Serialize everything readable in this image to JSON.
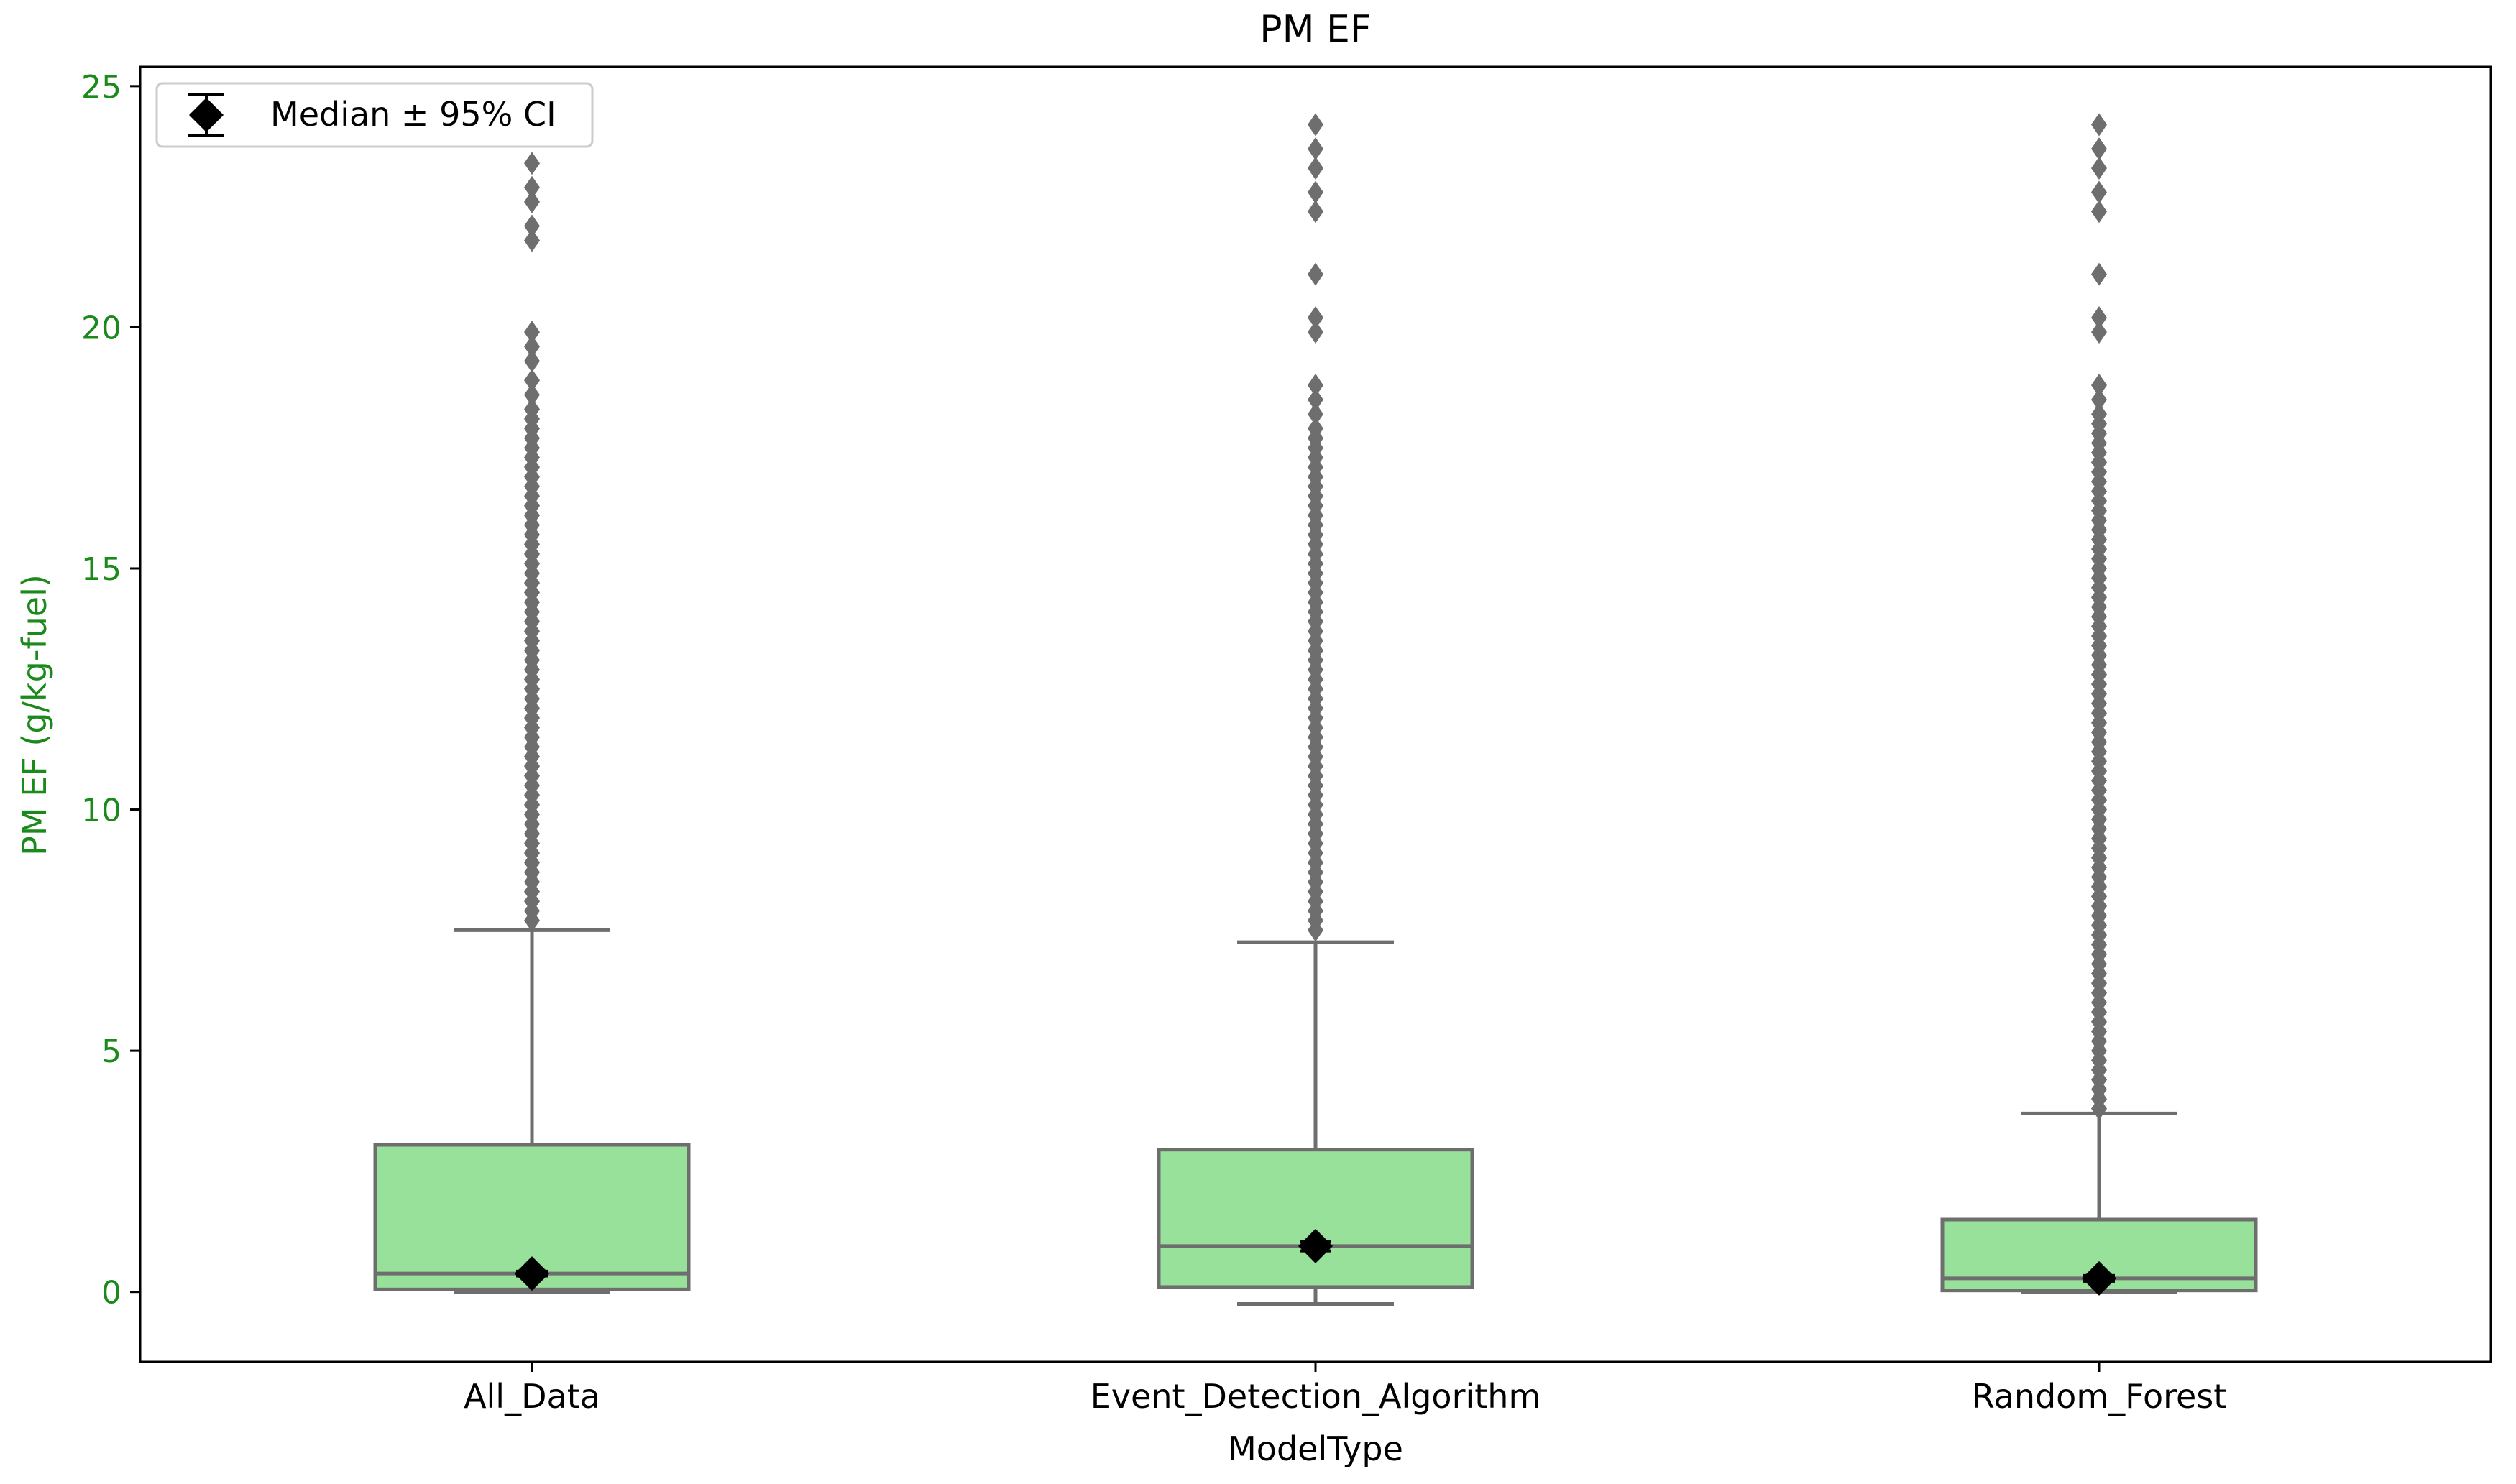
{
  "chart_data": {
    "type": "box",
    "title": "PM EF",
    "xlabel": "ModelType",
    "ylabel": "PM EF (g/kg-fuel)",
    "ylim": [
      -1.45,
      25.4
    ],
    "yticks": [
      0,
      5,
      10,
      15,
      20,
      25
    ],
    "grid": false,
    "legend": {
      "placement": "top-left",
      "label": "Median ± 95% CI"
    },
    "colors": {
      "box_fill": "#98e19b",
      "box_edge": "#6e6e6e",
      "outlier": "#6e6e6e",
      "median_marker": "#000000",
      "y_axis_text": "#1a8a1a",
      "axis": "#000000"
    },
    "categories": [
      "All_Data",
      "Event_Detection_Algorithm",
      "Random_Forest"
    ],
    "boxes": [
      {
        "category": "All_Data",
        "whisker_low": 0.0,
        "q1": 0.05,
        "median": 0.38,
        "q3": 3.05,
        "whisker_high": 7.5,
        "median_ci": [
          0.33,
          0.43
        ],
        "outliers": [
          7.7,
          7.9,
          8.1,
          8.3,
          8.5,
          8.7,
          8.9,
          9.1,
          9.3,
          9.5,
          9.7,
          9.9,
          10.1,
          10.3,
          10.5,
          10.7,
          10.9,
          11.1,
          11.3,
          11.5,
          11.7,
          11.9,
          12.1,
          12.3,
          12.5,
          12.7,
          12.9,
          13.1,
          13.3,
          13.5,
          13.7,
          13.9,
          14.1,
          14.3,
          14.5,
          14.7,
          14.9,
          15.1,
          15.3,
          15.5,
          15.7,
          15.9,
          16.1,
          16.3,
          16.5,
          16.7,
          16.9,
          17.1,
          17.3,
          17.5,
          17.7,
          17.9,
          18.1,
          18.3,
          18.6,
          18.9,
          19.3,
          19.6,
          19.9,
          21.8,
          22.1,
          22.6,
          22.9,
          23.4
        ]
      },
      {
        "category": "Event_Detection_Algorithm",
        "whisker_low": -0.25,
        "q1": 0.1,
        "median": 0.95,
        "q3": 2.95,
        "whisker_high": 7.25,
        "median_ci": [
          0.85,
          1.05
        ],
        "outliers": [
          7.5,
          7.7,
          7.9,
          8.1,
          8.3,
          8.5,
          8.7,
          8.9,
          9.1,
          9.3,
          9.5,
          9.7,
          9.9,
          10.1,
          10.3,
          10.5,
          10.7,
          10.9,
          11.1,
          11.3,
          11.5,
          11.7,
          11.9,
          12.1,
          12.3,
          12.5,
          12.7,
          12.9,
          13.1,
          13.3,
          13.5,
          13.7,
          13.9,
          14.1,
          14.3,
          14.5,
          14.7,
          14.9,
          15.1,
          15.3,
          15.5,
          15.7,
          15.9,
          16.1,
          16.3,
          16.5,
          16.7,
          16.9,
          17.1,
          17.3,
          17.5,
          17.7,
          17.9,
          18.2,
          18.5,
          18.8,
          19.9,
          20.2,
          21.1,
          22.4,
          22.8,
          23.3,
          23.7,
          24.2
        ]
      },
      {
        "category": "Random_Forest",
        "whisker_low": 0.0,
        "q1": 0.03,
        "median": 0.28,
        "q3": 1.5,
        "whisker_high": 3.7,
        "median_ci": [
          0.22,
          0.34
        ],
        "outliers": [
          3.8,
          4.0,
          4.2,
          4.4,
          4.6,
          4.8,
          5.0,
          5.2,
          5.4,
          5.6,
          5.8,
          6.0,
          6.2,
          6.4,
          6.6,
          6.8,
          7.0,
          7.2,
          7.4,
          7.6,
          7.8,
          8.0,
          8.2,
          8.4,
          8.6,
          8.8,
          9.0,
          9.2,
          9.4,
          9.6,
          9.8,
          10.0,
          10.2,
          10.4,
          10.6,
          10.8,
          11.0,
          11.2,
          11.4,
          11.6,
          11.8,
          12.0,
          12.2,
          12.4,
          12.6,
          12.8,
          13.0,
          13.2,
          13.4,
          13.6,
          13.8,
          14.0,
          14.2,
          14.4,
          14.6,
          14.8,
          15.0,
          15.2,
          15.4,
          15.6,
          15.8,
          16.0,
          16.2,
          16.4,
          16.6,
          16.8,
          17.0,
          17.2,
          17.4,
          17.6,
          17.8,
          18.0,
          18.2,
          18.5,
          18.8,
          19.9,
          20.2,
          21.1,
          22.4,
          22.8,
          23.3,
          23.7,
          24.2
        ]
      }
    ]
  }
}
